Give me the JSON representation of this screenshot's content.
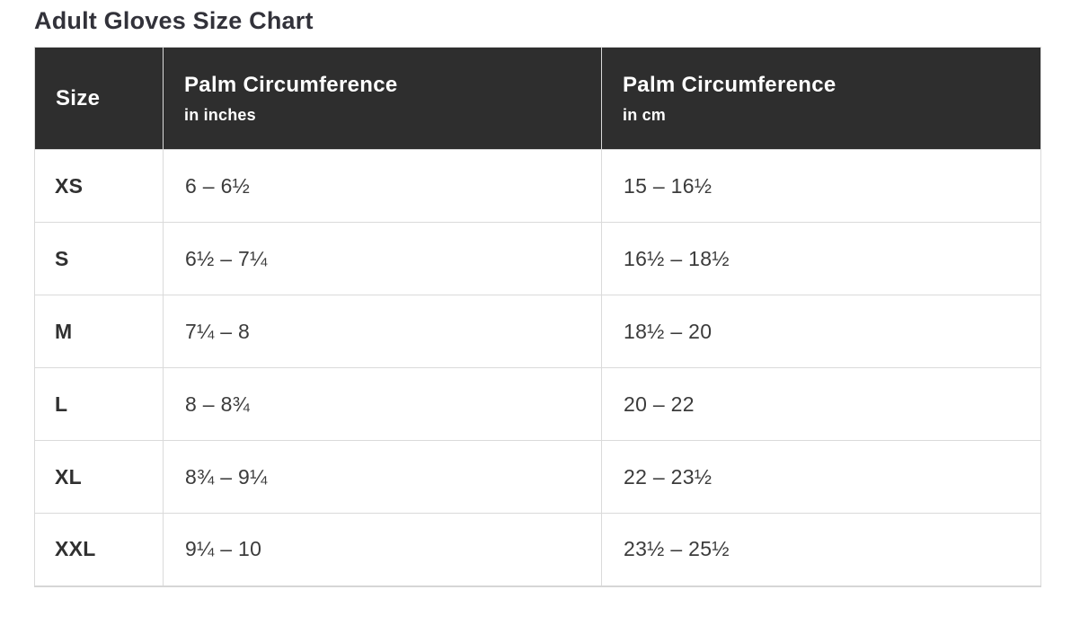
{
  "page": {
    "title": "Adult Gloves Size Chart"
  },
  "table": {
    "columns": [
      {
        "label": "Size",
        "sub": ""
      },
      {
        "label": "Palm Circumference",
        "sub": "in inches"
      },
      {
        "label": "Palm Circumference",
        "sub": "in cm"
      }
    ],
    "rows": [
      {
        "size": "XS",
        "inches": "6 – 6½",
        "cm": "15 – 16½"
      },
      {
        "size": "S",
        "inches": "6½ – 7¼",
        "cm": "16½ – 18½"
      },
      {
        "size": "M",
        "inches": "7¼ – 8",
        "cm": "18½ – 20"
      },
      {
        "size": "L",
        "inches": "8 – 8¾",
        "cm": "20 – 22"
      },
      {
        "size": "XL",
        "inches": "8¾ – 9¼",
        "cm": "22 – 23½"
      },
      {
        "size": "XXL",
        "inches": "9¼ – 10",
        "cm": "23½ – 25½"
      }
    ]
  },
  "colors": {
    "header_bg": "#2e2e2e",
    "header_text": "#ffffff",
    "body_text": "#3b3b3b",
    "border": "#dadada",
    "page_bg": "#ffffff"
  },
  "chart_data": {
    "type": "table",
    "title": "Adult Gloves Size Chart",
    "columns": [
      "Size",
      "Palm Circumference in inches",
      "Palm Circumference in cm"
    ],
    "rows": [
      [
        "XS",
        "6 – 6½",
        "15 – 16½"
      ],
      [
        "S",
        "6½ – 7¼",
        "16½ – 18½"
      ],
      [
        "M",
        "7¼ – 8",
        "18½ – 20"
      ],
      [
        "L",
        "8 – 8¾",
        "20 – 22"
      ],
      [
        "XL",
        "8¾ – 9¼",
        "22 – 23½"
      ],
      [
        "XXL",
        "9¼ – 10",
        "23½ – 25½"
      ]
    ]
  }
}
